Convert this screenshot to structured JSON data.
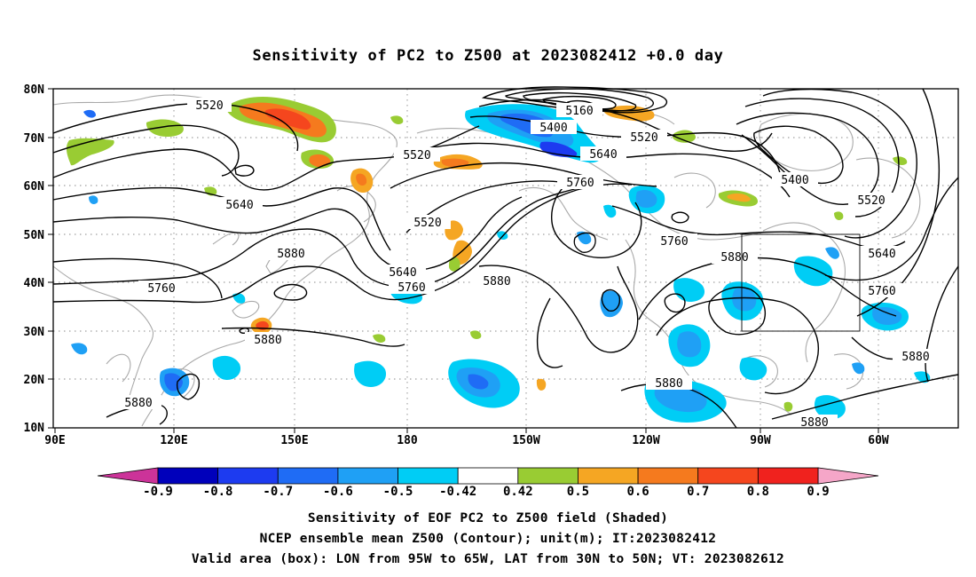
{
  "title": "Sensitivity of PC2 to Z500 at 2023082412 +0.0 day",
  "lat_ticks": [
    "80N",
    "70N",
    "60N",
    "50N",
    "40N",
    "30N",
    "20N",
    "10N"
  ],
  "lon_ticks": [
    "90E",
    "120E",
    "150E",
    "180",
    "150W",
    "120W",
    "90W",
    "60W"
  ],
  "contour_labels": [
    {
      "text": "5520",
      "pos": "upper-left"
    },
    {
      "text": "5160",
      "pos": "top-center"
    },
    {
      "text": "5400",
      "pos": "top-center"
    },
    {
      "text": "5520",
      "pos": "top-center-right"
    },
    {
      "text": "5520",
      "pos": "west-pacific"
    },
    {
      "text": "5640",
      "pos": "center"
    },
    {
      "text": "5760",
      "pos": "center"
    },
    {
      "text": "5640",
      "pos": "east-asia"
    },
    {
      "text": "5520",
      "pos": "bering"
    },
    {
      "text": "5880",
      "pos": "japan"
    },
    {
      "text": "5760",
      "pos": "china"
    },
    {
      "text": "5640",
      "pos": "dateline"
    },
    {
      "text": "5760",
      "pos": "dateline"
    },
    {
      "text": "5880",
      "pos": "central-pacific"
    },
    {
      "text": "5880",
      "pos": "south-japan"
    },
    {
      "text": "5880",
      "pos": "philippines"
    },
    {
      "text": "5400",
      "pos": "greenland"
    },
    {
      "text": "5520",
      "pos": "labrador"
    },
    {
      "text": "5760",
      "pos": "canada"
    },
    {
      "text": "5880",
      "pos": "us"
    },
    {
      "text": "5640",
      "pos": "atlantic"
    },
    {
      "text": "5760",
      "pos": "atlantic"
    },
    {
      "text": "5880",
      "pos": "atlantic-south"
    },
    {
      "text": "5880",
      "pos": "mexico"
    },
    {
      "text": "5880",
      "pos": "caribbean"
    }
  ],
  "colorbar": {
    "labels": [
      "-0.9",
      "-0.8",
      "-0.7",
      "-0.6",
      "-0.5",
      "-0.42",
      "0.42",
      "0.5",
      "0.6",
      "0.7",
      "0.8",
      "0.9"
    ],
    "colors": [
      "#0000bb",
      "#1d3bf0",
      "#1f6cf5",
      "#1fa0f5",
      "#00cdf5",
      "#ffffff",
      "#99cc33",
      "#f5a623",
      "#f57a1e",
      "#f5461e",
      "#f0221e"
    ],
    "low_color": "#cc3399",
    "high_color": "#f5a6c8"
  },
  "captions": [
    "Sensitivity of EOF PC2 to Z500 field (Shaded)",
    "NCEP ensemble mean Z500 (Contour); unit(m); IT:2023082412",
    "Valid area (box): LON from 95W to 65W, LAT from 30N to 50N; VT: 2023082612"
  ],
  "valid_box": {
    "lon_west": "95W",
    "lon_east": "65W",
    "lat_south": "30N",
    "lat_north": "50N"
  }
}
